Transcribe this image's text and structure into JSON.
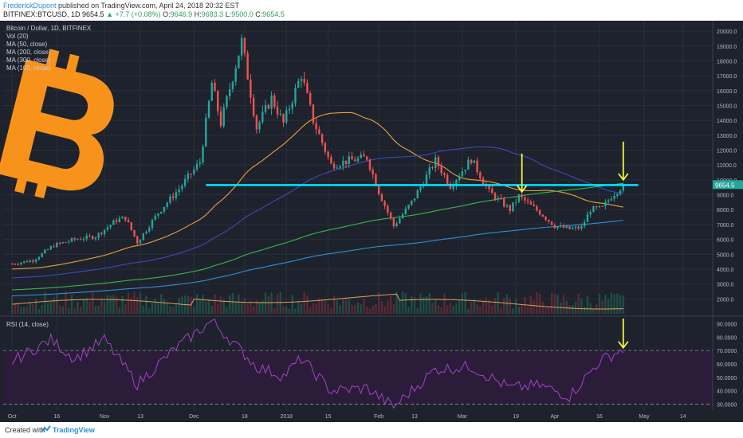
{
  "header": {
    "author": "FrederickDupont",
    "published": "published on TradingView.com, April 24, 2018 20:32 EST",
    "symbol": "BITFINEX:BTCUSD, 1D",
    "last": "9654.5",
    "change": "+7.7 (+0.08%)",
    "ohlc": {
      "o_label": "O:",
      "o": "9646.9",
      "h_label": "H:",
      "h": "9683.3",
      "l_label": "L:",
      "l": "9500.0",
      "c_label": "C:",
      "c": "9654.5"
    }
  },
  "legend": {
    "title": "Bitcoin / Dollar, 1D, BITFINEX",
    "items": [
      "Vol (20)",
      "MA (50, close)",
      "MA (200, close)",
      "MA (300, close)",
      "MA (100, close)"
    ]
  },
  "rsi_legend": "RSI (14, close)",
  "price_tag": "9654.5",
  "footer": {
    "created_with": "Created with",
    "brand": "TradingView"
  },
  "colors": {
    "background": "#1e222d",
    "grid": "#2a2e39",
    "up": "#26a69a",
    "down": "#ef5350",
    "ma50": "#e5a33f",
    "ma100": "#3b4bb8",
    "ma200": "#3bb54a",
    "ma300": "#2e8fd9",
    "support": "#00e5ff",
    "arrow": "#f5f53a",
    "rsi_line": "#a442c2",
    "rsi_band": "#2b1d3a",
    "logo": "#f7931a"
  },
  "chart_data": {
    "type": "candlestick",
    "x_ticks": [
      "Oct",
      "16",
      "Nov",
      "13",
      "Dec",
      "18",
      "2018",
      "15",
      "Feb",
      "13",
      "Mar",
      "19",
      "Apr",
      "16",
      "May",
      "14"
    ],
    "y_ticks": [
      2000,
      3000,
      4000,
      5000,
      6000,
      7000,
      8000,
      9000,
      10000,
      11000,
      12000,
      13000,
      14000,
      15000,
      16000,
      17000,
      18000,
      19000,
      20000
    ],
    "y_tick_labels": [
      "2000.0",
      "3000.0",
      "4000.0",
      "5000.0",
      "6000.0",
      "7000.0",
      "8000.0",
      "9000.0",
      "10000.0",
      "11000.0",
      "12000.0",
      "13000.0",
      "14000.0",
      "15000.0",
      "16000.0",
      "17000.0",
      "18000.0",
      "19000.0",
      "20000.0"
    ],
    "price_path": [
      [
        "2017-10-01",
        4350
      ],
      [
        "2017-10-08",
        4600
      ],
      [
        "2017-10-15",
        5600
      ],
      [
        "2017-10-22",
        6000
      ],
      [
        "2017-10-29",
        6200
      ],
      [
        "2017-11-05",
        7300
      ],
      [
        "2017-11-08",
        7450
      ],
      [
        "2017-11-12",
        5800
      ],
      [
        "2017-11-19",
        7800
      ],
      [
        "2017-11-26",
        9400
      ],
      [
        "2017-12-03",
        11200
      ],
      [
        "2017-12-07",
        16500
      ],
      [
        "2017-12-10",
        13800
      ],
      [
        "2017-12-17",
        19300
      ],
      [
        "2017-12-22",
        13500
      ],
      [
        "2017-12-27",
        15500
      ],
      [
        "2017-12-31",
        13800
      ],
      [
        "2018-01-06",
        17100
      ],
      [
        "2018-01-10",
        14000
      ],
      [
        "2018-01-16",
        11000
      ],
      [
        "2018-01-22",
        11300
      ],
      [
        "2018-01-28",
        11500
      ],
      [
        "2018-02-01",
        9200
      ],
      [
        "2018-02-06",
        6900
      ],
      [
        "2018-02-12",
        8500
      ],
      [
        "2018-02-20",
        11300
      ],
      [
        "2018-02-25",
        9600
      ],
      [
        "2018-03-04",
        11400
      ],
      [
        "2018-03-10",
        9200
      ],
      [
        "2018-03-17",
        8000
      ],
      [
        "2018-03-20",
        8900
      ],
      [
        "2018-03-27",
        7800
      ],
      [
        "2018-04-01",
        6900
      ],
      [
        "2018-04-06",
        6700
      ],
      [
        "2018-04-10",
        6800
      ],
      [
        "2018-04-13",
        8000
      ],
      [
        "2018-04-17",
        8100
      ],
      [
        "2018-04-20",
        8900
      ],
      [
        "2018-04-24",
        9654.5
      ]
    ],
    "support_level": 9650,
    "rsi_y_ticks": [
      30,
      40,
      50,
      60,
      70,
      80,
      90
    ],
    "rsi_y_tick_labels": [
      "30.0000",
      "40.0000",
      "50.0000",
      "60.0000",
      "70.0000",
      "80.0000",
      "90.0000"
    ],
    "rsi_path": [
      [
        "2017-10-01",
        62
      ],
      [
        "2017-10-14",
        78
      ],
      [
        "2017-10-22",
        64
      ],
      [
        "2017-11-01",
        78
      ],
      [
        "2017-11-12",
        45
      ],
      [
        "2017-11-25",
        72
      ],
      [
        "2017-12-07",
        92
      ],
      [
        "2017-12-22",
        58
      ],
      [
        "2017-12-31",
        51
      ],
      [
        "2018-01-06",
        64
      ],
      [
        "2018-01-16",
        40
      ],
      [
        "2018-01-28",
        42
      ],
      [
        "2018-02-06",
        28
      ],
      [
        "2018-02-20",
        56
      ],
      [
        "2018-03-04",
        58
      ],
      [
        "2018-03-17",
        42
      ],
      [
        "2018-03-27",
        44
      ],
      [
        "2018-04-06",
        36
      ],
      [
        "2018-04-16",
        62
      ],
      [
        "2018-04-24",
        71
      ]
    ],
    "arrows": [
      {
        "date": "2018-03-21",
        "target": 9200,
        "panel": "price"
      },
      {
        "date": "2018-04-24",
        "target": 10000,
        "panel": "price"
      },
      {
        "date": "2018-04-24",
        "target": 72,
        "panel": "rsi"
      }
    ]
  }
}
